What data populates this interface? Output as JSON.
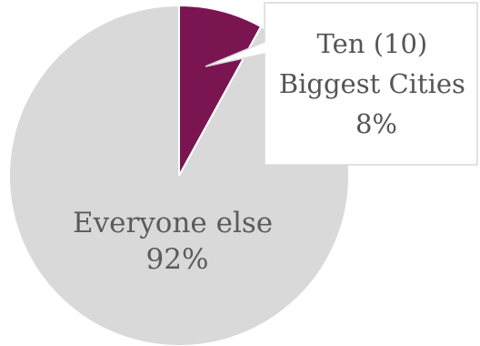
{
  "chart_data": {
    "type": "pie",
    "slices": [
      {
        "label_lines": [
          "Everyone else"
        ],
        "value_label": "92%",
        "value": 92,
        "color": "#d9d9d9"
      },
      {
        "label_lines": [
          "Ten (10)",
          "Biggest Cities"
        ],
        "value_label": "8%",
        "value": 8,
        "color": "#7b1552"
      }
    ],
    "start_angle_deg": 0,
    "direction": "clockwise",
    "callout": {
      "background": "#ffffff",
      "border": "#d9d9d9"
    }
  }
}
